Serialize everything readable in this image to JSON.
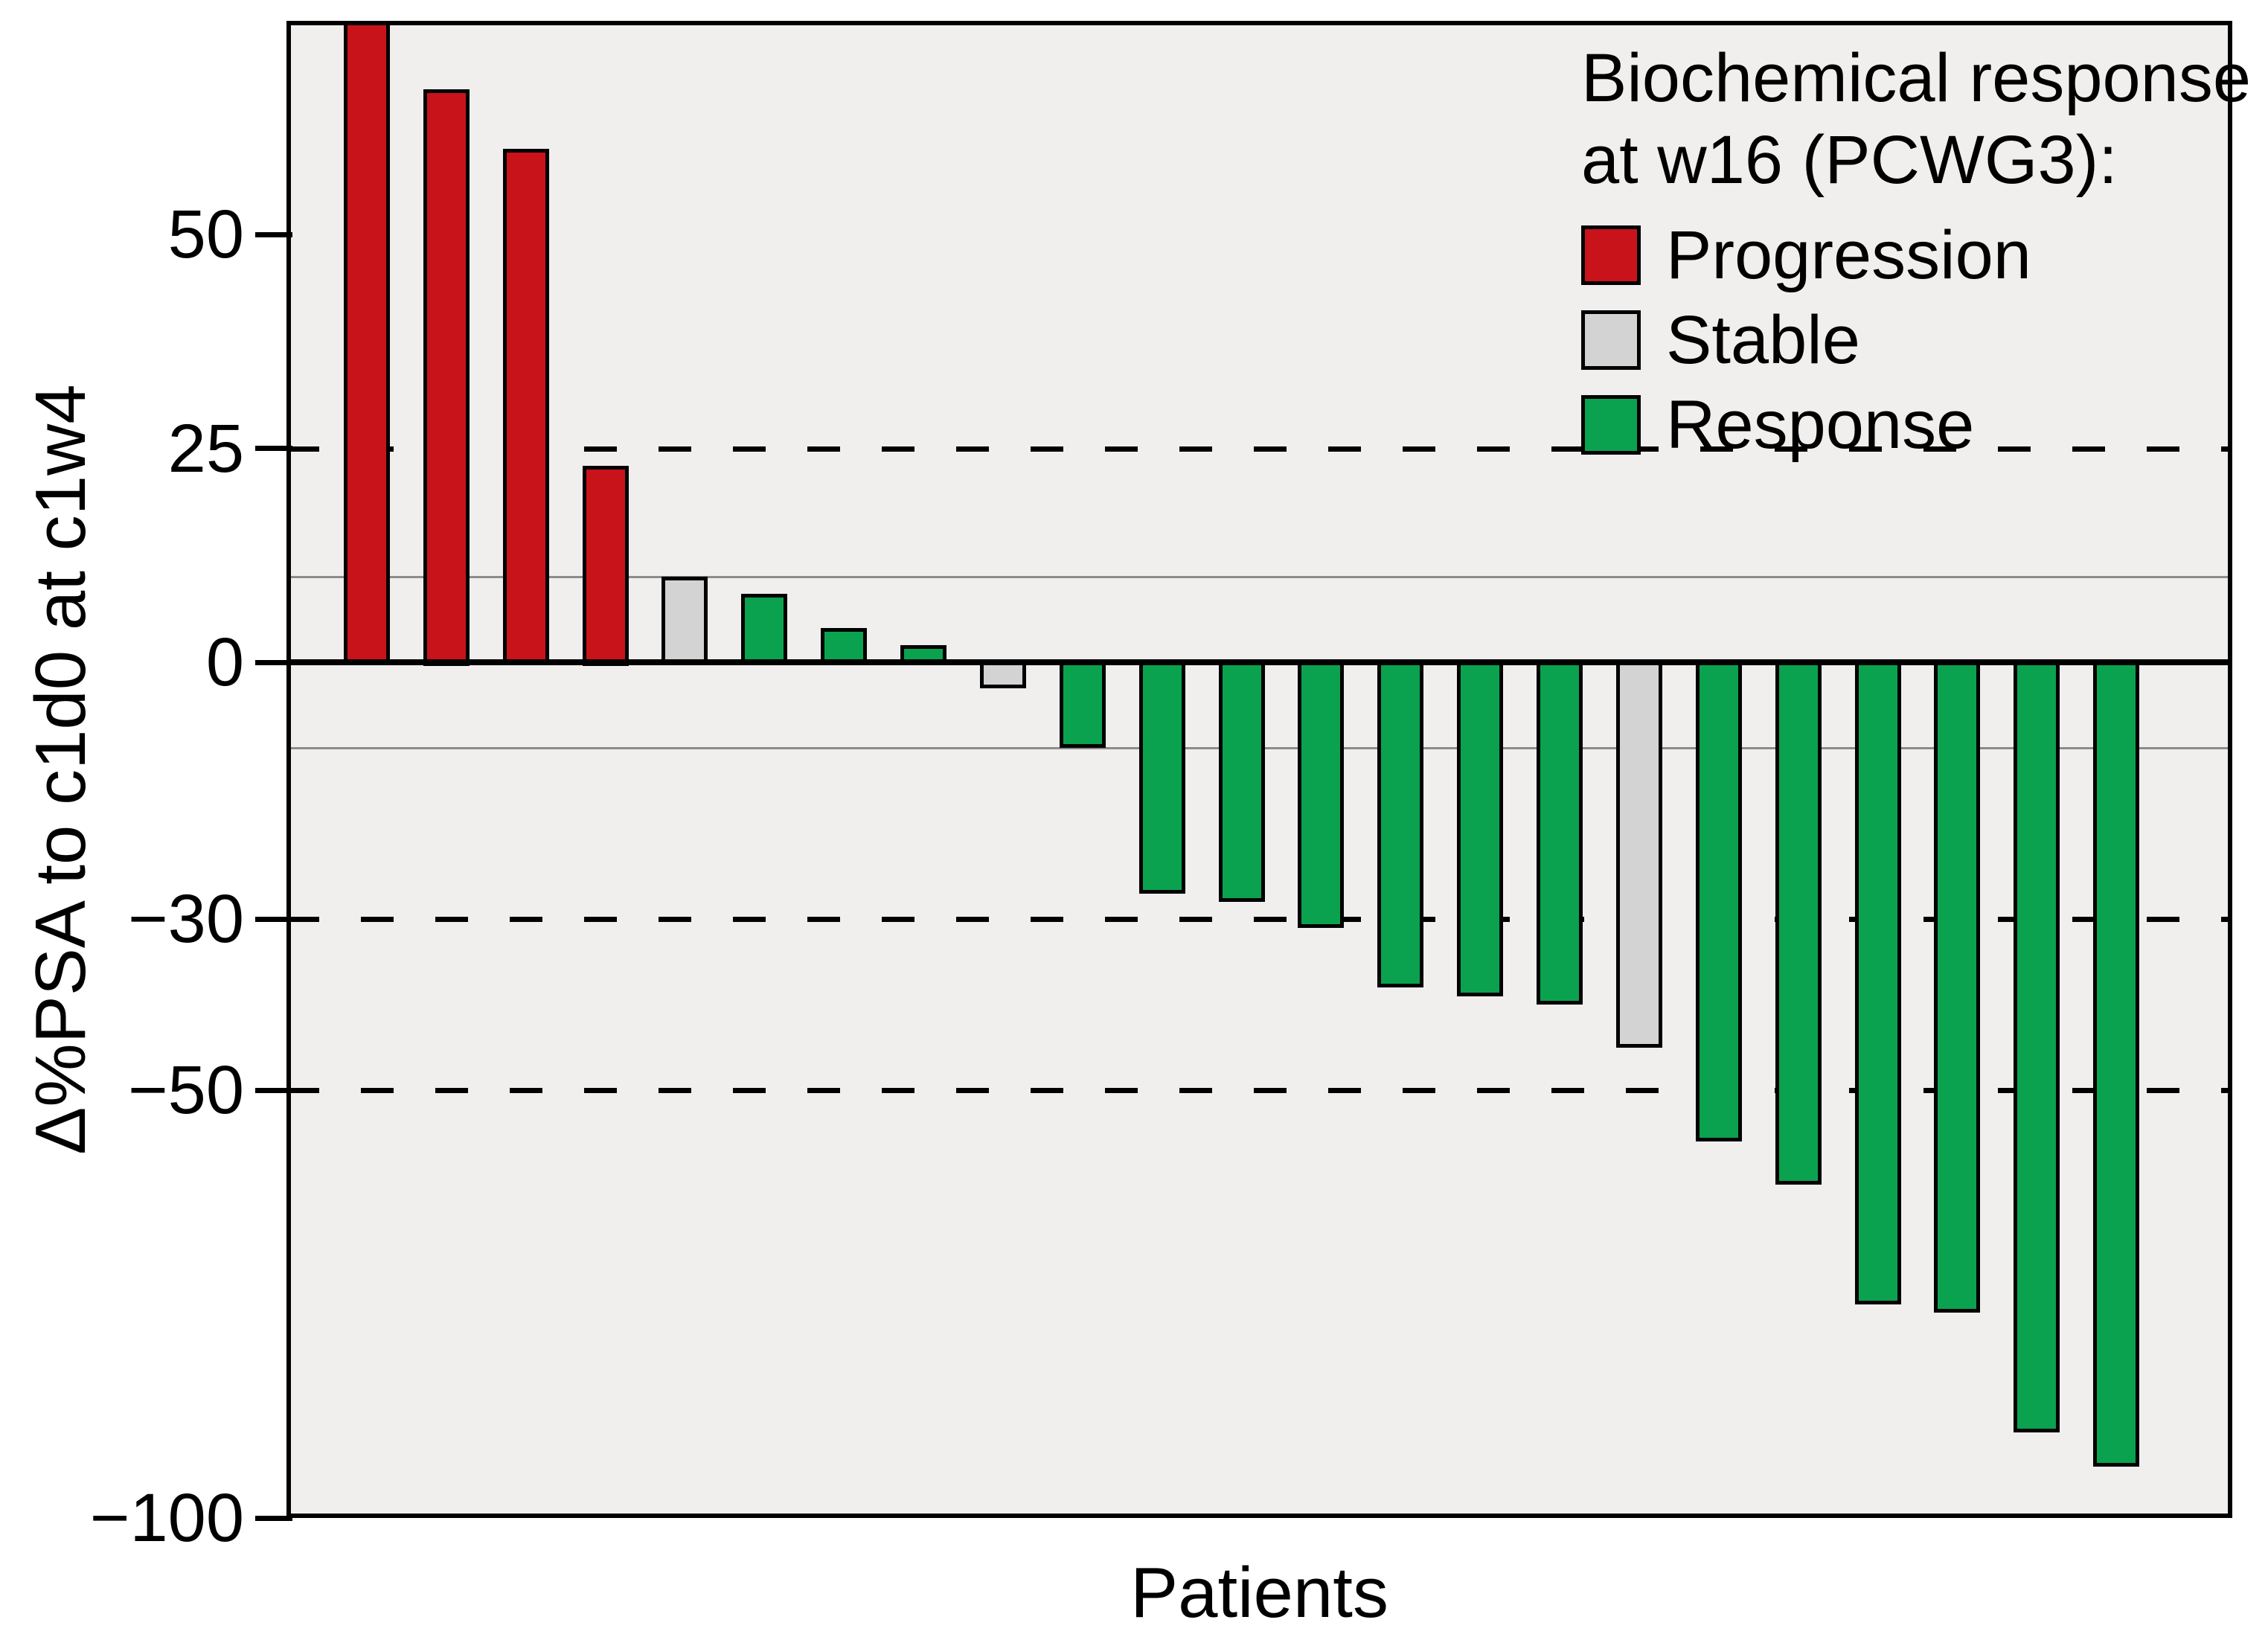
{
  "chart_data": {
    "type": "bar",
    "subtype": "waterfall",
    "title": "",
    "xlabel": "Patients",
    "ylabel": "Δ%PSA to c1d0 at c1w4",
    "ylim": [
      -100,
      75
    ],
    "grid": "reference lines only",
    "yticks": [
      {
        "value": 50,
        "label": "50"
      },
      {
        "value": 25,
        "label": "25"
      },
      {
        "value": 0,
        "label": "0"
      },
      {
        "value": -30,
        "label": "−30"
      },
      {
        "value": -50,
        "label": "−50"
      },
      {
        "value": -100,
        "label": "−100"
      }
    ],
    "reference_lines": {
      "dashed_black_at": [
        25,
        -30,
        -50
      ],
      "solid_gray_at": [
        10,
        -10
      ],
      "zero_line_at": 0
    },
    "legend": {
      "position": "top-right inside plot",
      "title_lines": [
        "Biochemical response",
        "at w16 (PCWG3):"
      ],
      "items": [
        {
          "label": "Progression",
          "key": "progression"
        },
        {
          "label": "Stable",
          "key": "stable"
        },
        {
          "label": "Response",
          "key": "response"
        }
      ]
    },
    "bars": [
      {
        "value": 76,
        "response": "Progression",
        "clipped_top": true
      },
      {
        "value": 67,
        "response": "Progression"
      },
      {
        "value": 60,
        "response": "Progression"
      },
      {
        "value": 23,
        "response": "Progression"
      },
      {
        "value": 10,
        "response": "Stable"
      },
      {
        "value": 8,
        "response": "Response"
      },
      {
        "value": 4,
        "response": "Response"
      },
      {
        "value": 2,
        "response": "Response"
      },
      {
        "value": -3,
        "response": "Stable"
      },
      {
        "value": -10,
        "response": "Response"
      },
      {
        "value": -27,
        "response": "Response"
      },
      {
        "value": -28,
        "response": "Response"
      },
      {
        "value": -31,
        "response": "Response"
      },
      {
        "value": -38,
        "response": "Response"
      },
      {
        "value": -39,
        "response": "Response"
      },
      {
        "value": -40,
        "response": "Response"
      },
      {
        "value": -45,
        "response": "Stable"
      },
      {
        "value": -56,
        "response": "Response"
      },
      {
        "value": -61,
        "response": "Response"
      },
      {
        "value": -75,
        "response": "Response"
      },
      {
        "value": -76,
        "response": "Response"
      },
      {
        "value": -90,
        "response": "Response"
      },
      {
        "value": -94,
        "response": "Response"
      }
    ]
  },
  "colors": {
    "progression": "#c8131b",
    "stable": "#d3d3d3",
    "response": "#0aa24f",
    "panel_bg": "#f0efee",
    "page_bg": "#ffffff",
    "outline": "#000000",
    "gray_line": "#8c8c8c"
  }
}
